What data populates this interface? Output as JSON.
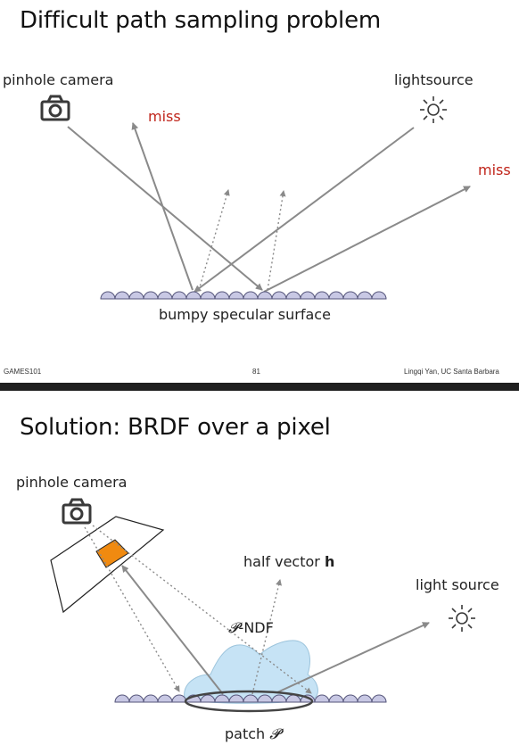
{
  "slide1": {
    "title": "Difficult path sampling problem",
    "labels": {
      "camera": "pinhole camera",
      "light": "lightsource",
      "miss_left": "miss",
      "miss_right": "miss",
      "surface": "bumpy specular surface"
    },
    "footer": {
      "course": "GAMES101",
      "page_number": "81",
      "author": "Lingqi Yan, UC Santa Barbara"
    }
  },
  "slide2": {
    "title": "Solution: BRDF over a pixel",
    "labels": {
      "camera": "pinhole camera",
      "half_vector": "half vector ",
      "half_vector_symbol": "h",
      "light": "light source",
      "ndf_symbol": "𝓟",
      "ndf": "-NDF",
      "patch": "patch ",
      "patch_symbol": "𝓟"
    }
  },
  "colors": {
    "ray": "#8a8a8a",
    "bump_fill": "#c8c8e4",
    "bump_stroke": "#55557a",
    "pixel": "#f08a10",
    "ndf_blob": "#c6e3f5",
    "miss_text": "#c0251b"
  },
  "icons": [
    "camera-icon",
    "sun-icon"
  ]
}
